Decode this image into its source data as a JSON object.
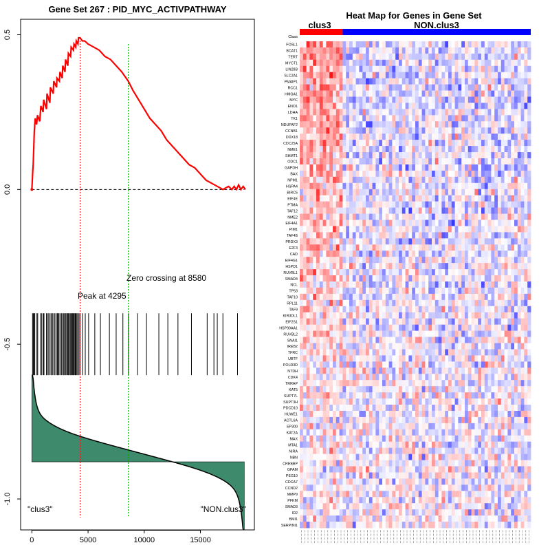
{
  "chart_data": [
    {
      "type": "line",
      "title": "Gene Set  267 : PID_MYC_ACTIVPATHWAY",
      "xlim": [
        -1000,
        19800
      ],
      "ylim": [
        -1.1,
        0.55
      ],
      "x_ticks": [
        0,
        5000,
        10000,
        15000
      ],
      "x_tick_labels": [
        "0",
        "5000",
        "10000",
        "15000"
      ],
      "y_ticks": [
        0.5,
        0.0,
        -0.5,
        -1.0
      ],
      "y_tick_labels": [
        "0.5",
        "0.0",
        "-0.5",
        "-1.0"
      ],
      "series": [
        {
          "name": "Running enrichment score",
          "color": "#ff0000",
          "x": [
            0,
            80,
            120,
            200,
            220,
            300,
            420,
            500,
            700,
            800,
            1000,
            1050,
            1300,
            1350,
            1600,
            1650,
            1900,
            1950,
            2200,
            2230,
            2450,
            2500,
            2700,
            2750,
            2950,
            3000,
            3200,
            3250,
            3450,
            3500,
            3700,
            3750,
            3900,
            3950,
            4100,
            4150,
            4295,
            4500,
            4700,
            5000,
            5500,
            6000,
            6500,
            7000,
            7500,
            8000,
            8580,
            9000,
            9500,
            10000,
            10500,
            11000,
            11500,
            12000,
            12500,
            13000,
            13500,
            14000,
            14500,
            15000,
            15500,
            16000,
            16500,
            17000,
            17500,
            17800,
            18000,
            18200,
            18400,
            18600,
            18800,
            19000
          ],
          "y": [
            0.0,
            0.06,
            0.08,
            0.17,
            0.19,
            0.23,
            0.21,
            0.24,
            0.22,
            0.27,
            0.25,
            0.29,
            0.26,
            0.31,
            0.28,
            0.33,
            0.31,
            0.35,
            0.33,
            0.36,
            0.35,
            0.38,
            0.36,
            0.4,
            0.38,
            0.42,
            0.4,
            0.44,
            0.43,
            0.46,
            0.45,
            0.47,
            0.46,
            0.48,
            0.47,
            0.49,
            0.49,
            0.48,
            0.48,
            0.47,
            0.46,
            0.45,
            0.43,
            0.42,
            0.4,
            0.38,
            0.35,
            0.32,
            0.29,
            0.26,
            0.23,
            0.21,
            0.19,
            0.16,
            0.14,
            0.12,
            0.1,
            0.08,
            0.07,
            0.05,
            0.03,
            0.02,
            0.01,
            0.0,
            0.01,
            0.0,
            0.01,
            0.0,
            0.015,
            0.0,
            0.01,
            0.0
          ]
        }
      ],
      "peak_x": 4295,
      "zero_crossing_x": 8580,
      "annotations": {
        "peak": "Peak at 4295",
        "zero_crossing": "Zero crossing at 8580",
        "left_class": "\"clus3\"",
        "right_class": "\"NON.clus3\""
      },
      "hit_positions": [
        60,
        130,
        210,
        260,
        450,
        520,
        780,
        880,
        1020,
        1080,
        1300,
        1380,
        1500,
        1620,
        1720,
        1830,
        1950,
        2050,
        2180,
        2280,
        2350,
        2420,
        2550,
        2650,
        2760,
        2840,
        2920,
        3020,
        3110,
        3180,
        3260,
        3330,
        3420,
        3500,
        3580,
        3650,
        3720,
        3780,
        3860,
        3930,
        4010,
        4100,
        4200,
        4295,
        4520,
        4750,
        5050,
        5600,
        6100,
        6900,
        7500,
        8100,
        8600,
        9400,
        10200,
        11300,
        12100,
        13000,
        14200,
        15600,
        16200,
        16500,
        17000,
        18300
      ],
      "metric_range": [
        -1.1,
        -0.6
      ],
      "fill_color": "#3e8a6c"
    },
    {
      "type": "heatmap",
      "title": "Heat Map for Genes in Gene Set",
      "groups": [
        "clus3",
        "NON.clus3"
      ],
      "group_colors": [
        "#ff0000",
        "#0000ff"
      ],
      "class_label": "Class",
      "n_samples": 70,
      "n_clus3": 13,
      "genes": [
        "FOSL1",
        "BCAT1",
        "TERT",
        "MYCT1",
        "LIN28B",
        "SLC2A1",
        "PMAIP1",
        "RCC1",
        "HMGA1",
        "MYC",
        "ENO1",
        "LDHA",
        "TK1",
        "NDUFAF2",
        "CCNB1",
        "DDX18",
        "CDC25A",
        "NME1",
        "SHMT1",
        "ODC1",
        "GAPDH",
        "BAX",
        "NPM1",
        "HSPA4",
        "BIRC5",
        "EIF4E",
        "PTMA",
        "TAF12",
        "NME2",
        "EIF4A1",
        "PIM1",
        "TAF4B",
        "PRDX3",
        "E2F3",
        "CAD",
        "EIF4G1",
        "HSPD1",
        "RUVBL1",
        "SMAD4",
        "NCL",
        "TP53",
        "TAF10",
        "RPL11",
        "TAF9",
        "KIR3DL1",
        "EIF2S1",
        "HSP90AA1",
        "RUVBL2",
        "SNAI1",
        "IREB2",
        "TFRC",
        "UBTF",
        "POLR3D",
        "NTDH",
        "CDK4",
        "TRRAP",
        "KAT5",
        "SUPT7L",
        "SUPT3H",
        "PDCD10",
        "HUWE1",
        "ACTL6A",
        "EP300",
        "KAT2A",
        "MAX",
        "MTA1",
        "NIRA",
        "NBN",
        "CREBBP",
        "GPAM",
        "PEG10",
        "CDCA7",
        "CCND2",
        "MMP9",
        "PFKM",
        "SMAD3",
        "ID2",
        "BMI1",
        "SERPINI1"
      ]
    }
  ]
}
